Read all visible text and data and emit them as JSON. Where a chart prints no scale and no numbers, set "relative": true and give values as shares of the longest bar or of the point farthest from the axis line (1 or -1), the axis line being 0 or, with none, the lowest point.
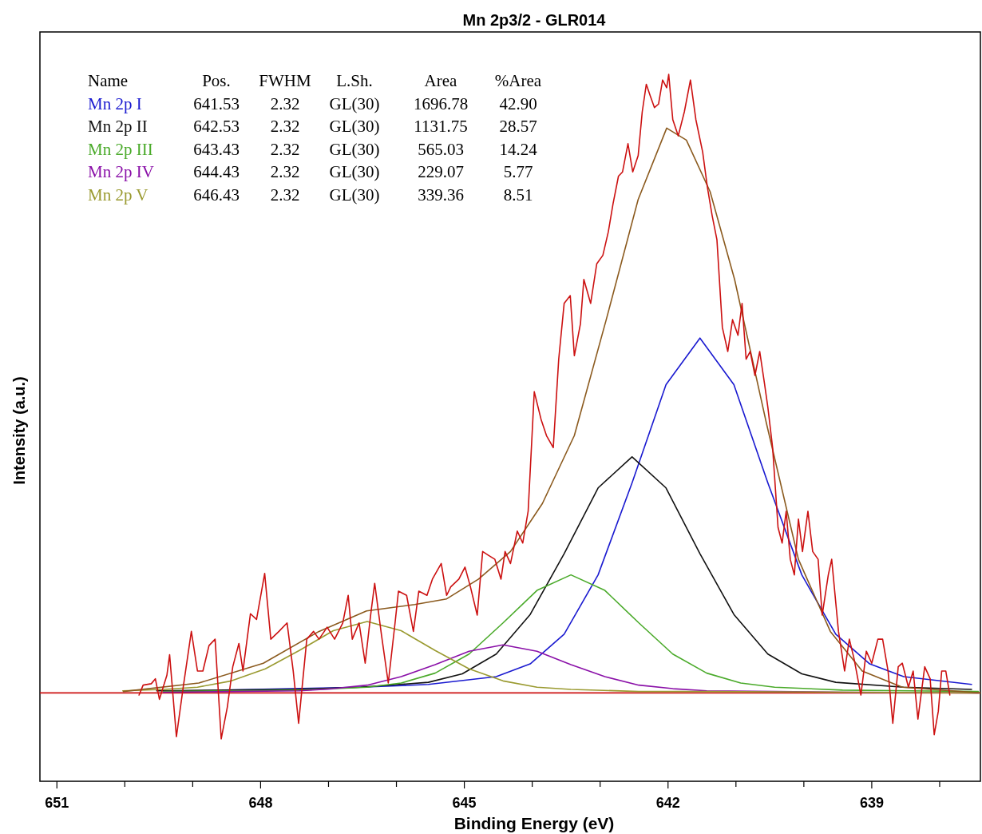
{
  "chart_data": {
    "type": "line",
    "title": "Mn 2p3/2 - GLR014",
    "xlabel": "Binding Energy (eV)",
    "ylabel": "Intensity (a.u.)",
    "relative": true,
    "legend": "top left",
    "legend_title": "Name",
    "annotations": [
      "Pos.",
      "FWHM",
      "L.Sh.",
      "Area",
      "%Area",
      "641.53",
      "2.32",
      "GL(30)",
      "1696.78",
      "42.90",
      "642.53",
      "2.32",
      "GL(30)",
      "1131.75",
      "28.57",
      "643.43",
      "2.32",
      "GL(30)",
      "565.03",
      "14.24",
      "644.43",
      "2.32",
      "GL(30)",
      "229.07",
      "5.77",
      "646.43",
      "2.32",
      "GL(30)",
      "339.36",
      "8.51"
    ],
    "xlim": [
      651.25,
      637.4
    ],
    "xticks": [
      651,
      {
        "value": 650,
        "label": null
      },
      {
        "value": 649,
        "label": null
      },
      648,
      {
        "value": 647,
        "label": null
      },
      {
        "value": 646,
        "label": null
      },
      645,
      {
        "value": 644,
        "label": null
      },
      {
        "value": 643,
        "label": null
      },
      642,
      {
        "value": 641,
        "label": null
      },
      {
        "value": 640,
        "label": null
      },
      639,
      {
        "value": 638,
        "label": null
      }
    ],
    "series": [
      {
        "color": "#cc1111",
        "x": [
          651.25,
          637.4
        ],
        "values": [
          0.125,
          0.125
        ]
      },
      {
        "name": "Mn 2p I",
        "color": "#1a1ad0",
        "x": [
          648.53,
          646.53,
          645.53,
          644.53,
          644.03,
          643.53,
          643.03,
          642.53,
          642.03,
          641.53,
          641.03,
          640.53,
          640.03,
          639.53,
          639.03,
          638.53,
          637.53
        ],
        "values": [
          0.129,
          0.133,
          0.137,
          0.148,
          0.166,
          0.208,
          0.292,
          0.422,
          0.561,
          0.627,
          0.561,
          0.422,
          0.292,
          0.208,
          0.166,
          0.148,
          0.137
        ]
      },
      {
        "name": "Mn 2p II",
        "color": "#111111",
        "x": [
          649.53,
          647.53,
          646.53,
          645.53,
          645.03,
          644.53,
          644.03,
          643.53,
          643.03,
          642.53,
          642.03,
          641.53,
          641.03,
          640.53,
          640.03,
          639.53,
          638.53,
          637.53
        ],
        "values": [
          0.128,
          0.13,
          0.133,
          0.14,
          0.152,
          0.18,
          0.236,
          0.322,
          0.415,
          0.459,
          0.415,
          0.322,
          0.236,
          0.18,
          0.152,
          0.14,
          0.133,
          0.13
        ]
      },
      {
        "name": "Mn 2p III",
        "color": "#4aaa2a",
        "x": [
          649.43,
          648.43,
          647.43,
          646.43,
          645.93,
          645.43,
          644.93,
          644.43,
          643.93,
          643.43,
          642.93,
          642.43,
          641.93,
          641.43,
          640.93,
          640.43,
          639.43,
          638.43,
          637.43
        ],
        "values": [
          0.127,
          0.128,
          0.129,
          0.133,
          0.139,
          0.153,
          0.18,
          0.224,
          0.27,
          0.292,
          0.27,
          0.224,
          0.18,
          0.153,
          0.139,
          0.133,
          0.129,
          0.128,
          0.127
        ]
      },
      {
        "name": "Mn 2p IV",
        "color": "#8a10a8",
        "x": [
          649.43,
          648.43,
          647.43,
          646.93,
          646.43,
          645.93,
          645.43,
          644.93,
          644.43,
          643.93,
          643.43,
          642.93,
          642.43,
          641.93,
          641.43,
          640.43,
          639.43,
          637.43
        ],
        "values": [
          0.126,
          0.127,
          0.128,
          0.131,
          0.136,
          0.148,
          0.165,
          0.184,
          0.193,
          0.184,
          0.165,
          0.148,
          0.136,
          0.131,
          0.128,
          0.127,
          0.126,
          0.125
        ]
      },
      {
        "name": "Mn 2p V",
        "color": "#9a9a30",
        "x": [
          650.03,
          649.43,
          648.93,
          648.43,
          647.93,
          647.43,
          646.93,
          646.43,
          645.93,
          645.43,
          644.93,
          644.43,
          643.93,
          643.43,
          642.43,
          641.43,
          637.43
        ],
        "values": [
          0.128,
          0.13,
          0.133,
          0.142,
          0.159,
          0.185,
          0.213,
          0.226,
          0.213,
          0.185,
          0.159,
          0.142,
          0.133,
          0.13,
          0.127,
          0.127,
          0.125
        ]
      },
      {
        "color": "#8b5a1e",
        "x": [
          650.02,
          648.91,
          647.96,
          647.14,
          646.44,
          645.73,
          645.26,
          644.79,
          644.32,
          643.85,
          643.38,
          642.91,
          642.44,
          642.02,
          641.73,
          641.38,
          641.02,
          640.55,
          640.08,
          639.61,
          639.14,
          638.55,
          637.4
        ],
        "values": [
          0.127,
          0.139,
          0.167,
          0.212,
          0.241,
          0.25,
          0.258,
          0.286,
          0.325,
          0.393,
          0.489,
          0.653,
          0.823,
          0.924,
          0.907,
          0.834,
          0.71,
          0.506,
          0.314,
          0.212,
          0.156,
          0.133,
          0.125
        ]
      },
      {
        "color": "#cc1111",
        "x": [
          649.79,
          649.73,
          649.61,
          649.55,
          649.49,
          649.38,
          649.34,
          649.24,
          649.14,
          649.02,
          648.93,
          648.85,
          648.76,
          648.67,
          648.58,
          648.49,
          648.41,
          648.32,
          648.26,
          648.15,
          648.06,
          647.94,
          647.85,
          647.73,
          647.61,
          647.52,
          647.44,
          647.32,
          647.22,
          647.14,
          647.02,
          646.91,
          646.79,
          646.71,
          646.65,
          646.55,
          646.46,
          646.38,
          646.32,
          646.22,
          646.12,
          646.02,
          645.97,
          645.85,
          645.75,
          645.67,
          645.55,
          645.47,
          645.34,
          645.26,
          645.2,
          645.08,
          644.99,
          644.91,
          644.81,
          644.73,
          644.65,
          644.55,
          644.46,
          644.4,
          644.32,
          644.22,
          644.14,
          644.06,
          643.97,
          643.87,
          643.79,
          643.69,
          643.61,
          643.53,
          643.44,
          643.38,
          643.29,
          643.24,
          643.14,
          643.05,
          642.96,
          642.88,
          642.81,
          642.73,
          642.67,
          642.59,
          642.52,
          642.44,
          642.38,
          642.32,
          642.26,
          642.2,
          642.14,
          642.08,
          642.02,
          641.99,
          641.93,
          641.85,
          641.76,
          641.67,
          641.59,
          641.49,
          641.42,
          641.35,
          641.28,
          641.2,
          641.12,
          641.05,
          640.97,
          640.91,
          640.85,
          640.79,
          640.72,
          640.65,
          640.58,
          640.53,
          640.46,
          640.38,
          640.32,
          640.26,
          640.2,
          640.14,
          640.08,
          640.02,
          639.94,
          639.87,
          639.79,
          639.73,
          639.64,
          639.59,
          639.49,
          639.4,
          639.33,
          639.26,
          639.16,
          639.08,
          639.0,
          638.91,
          638.84,
          638.76,
          638.69,
          638.61,
          638.55,
          638.46,
          638.39,
          638.32,
          638.22,
          638.14,
          638.08,
          638.02,
          637.97,
          637.91,
          637.85
        ],
        "values": [
          0.122,
          0.136,
          0.138,
          0.145,
          0.116,
          0.15,
          0.179,
          0.063,
          0.133,
          0.212,
          0.156,
          0.156,
          0.192,
          0.201,
          0.06,
          0.105,
          0.162,
          0.195,
          0.156,
          0.237,
          0.229,
          0.294,
          0.201,
          0.212,
          0.224,
          0.156,
          0.082,
          0.201,
          0.212,
          0.201,
          0.218,
          0.201,
          0.224,
          0.263,
          0.201,
          0.224,
          0.167,
          0.235,
          0.28,
          0.207,
          0.139,
          0.224,
          0.269,
          0.263,
          0.212,
          0.269,
          0.263,
          0.286,
          0.308,
          0.263,
          0.275,
          0.286,
          0.303,
          0.275,
          0.235,
          0.325,
          0.32,
          0.314,
          0.286,
          0.325,
          0.308,
          0.354,
          0.337,
          0.382,
          0.551,
          0.512,
          0.489,
          0.472,
          0.597,
          0.676,
          0.687,
          0.602,
          0.647,
          0.71,
          0.676,
          0.732,
          0.744,
          0.777,
          0.817,
          0.856,
          0.862,
          0.902,
          0.862,
          0.885,
          0.947,
          0.986,
          0.969,
          0.953,
          0.958,
          0.992,
          0.981,
          1.0,
          0.936,
          0.913,
          0.947,
          0.992,
          0.936,
          0.89,
          0.84,
          0.8,
          0.766,
          0.642,
          0.608,
          0.653,
          0.631,
          0.676,
          0.597,
          0.608,
          0.574,
          0.608,
          0.563,
          0.529,
          0.472,
          0.359,
          0.337,
          0.382,
          0.314,
          0.292,
          0.371,
          0.325,
          0.382,
          0.325,
          0.314,
          0.235,
          0.292,
          0.314,
          0.212,
          0.156,
          0.201,
          0.173,
          0.122,
          0.184,
          0.167,
          0.201,
          0.201,
          0.156,
          0.082,
          0.162,
          0.167,
          0.133,
          0.156,
          0.088,
          0.162,
          0.145,
          0.066,
          0.099,
          0.156,
          0.156,
          0.122
        ]
      }
    ]
  }
}
